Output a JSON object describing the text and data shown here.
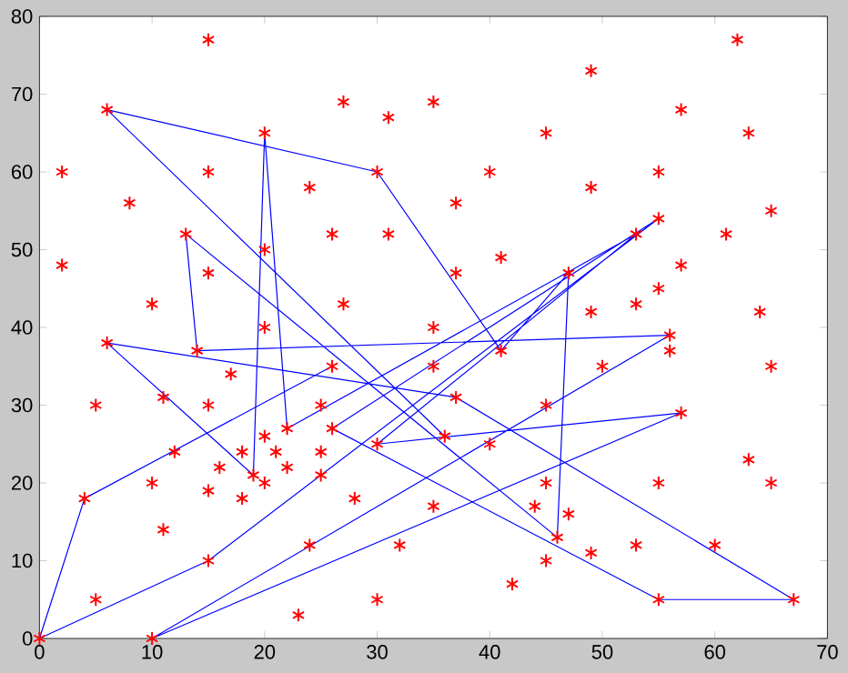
{
  "chart_data": {
    "type": "scatter",
    "xlim": [
      0,
      70
    ],
    "ylim": [
      0,
      80
    ],
    "xticks": [
      0,
      10,
      20,
      30,
      40,
      50,
      60,
      70
    ],
    "yticks": [
      0,
      10,
      20,
      30,
      40,
      50,
      60,
      70,
      80
    ],
    "series": [
      {
        "color": "#ff0000",
        "marker": "cross",
        "x": [
          15,
          62,
          49,
          27,
          35,
          31,
          6,
          57,
          20,
          45,
          63,
          2,
          15,
          30,
          40,
          55,
          24,
          49,
          8,
          37,
          65,
          55,
          13,
          26,
          31,
          53,
          61,
          20,
          41,
          2,
          57,
          15,
          37,
          47,
          55,
          10,
          27,
          53,
          49,
          64,
          20,
          35,
          56,
          6,
          14,
          41,
          56,
          17,
          26,
          35,
          50,
          65,
          5,
          11,
          15,
          25,
          37,
          45,
          22,
          26,
          57,
          20,
          36,
          30,
          40,
          12,
          18,
          21,
          25,
          63,
          16,
          22,
          19,
          25,
          10,
          20,
          45,
          55,
          65,
          15,
          4,
          18,
          28,
          35,
          44,
          47,
          11,
          46,
          24,
          32,
          53,
          60,
          49,
          15,
          45,
          42,
          5,
          30,
          55,
          67,
          23,
          0,
          10
        ],
        "values": [
          77,
          77,
          73,
          69,
          69,
          67,
          68,
          68,
          65,
          65,
          65,
          60,
          60,
          60,
          60,
          60,
          58,
          58,
          56,
          56,
          55,
          54,
          52,
          52,
          52,
          52,
          52,
          50,
          49,
          48,
          48,
          47,
          47,
          47,
          45,
          43,
          43,
          43,
          42,
          42,
          40,
          40,
          39,
          38,
          37,
          37,
          37,
          34,
          35,
          35,
          35,
          35,
          30,
          31,
          30,
          30,
          31,
          30,
          27,
          27,
          29,
          26,
          26,
          25,
          25,
          24,
          24,
          24,
          24,
          23,
          22,
          22,
          21,
          21,
          20,
          20,
          20,
          20,
          20,
          19,
          18,
          18,
          18,
          17,
          17,
          16,
          14,
          13,
          12,
          12,
          12,
          12,
          11,
          10,
          10,
          7,
          5,
          5,
          5,
          5,
          3,
          0,
          0
        ]
      },
      {
        "type": "line",
        "color": "#0000ff",
        "marker": "none",
        "line_style": "solid",
        "x": [
          36,
          6,
          30,
          41,
          47,
          46,
          13,
          14,
          56,
          10,
          57,
          30,
          53,
          22,
          20,
          19,
          6,
          37,
          67,
          55,
          26,
          55,
          15,
          0,
          4,
          26
        ],
        "values": [
          26,
          68,
          60,
          37,
          47,
          13,
          52,
          37,
          39,
          0,
          29,
          25,
          52,
          27,
          65,
          21,
          38,
          31,
          5,
          5,
          27,
          54,
          10,
          0,
          18,
          35
        ]
      }
    ]
  }
}
